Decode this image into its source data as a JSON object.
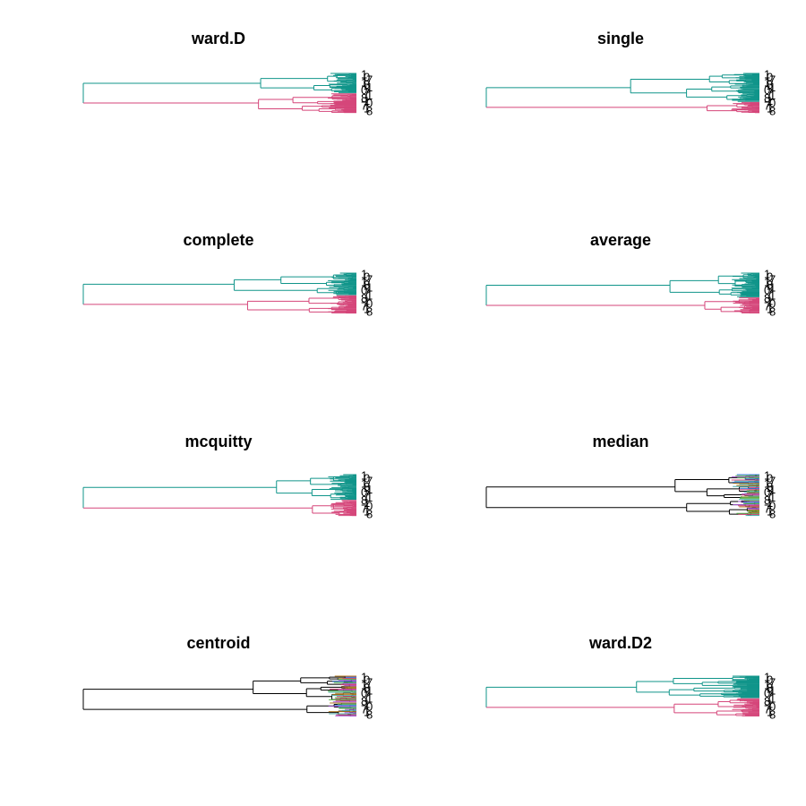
{
  "chart_data": [
    {
      "type": "dendrogram",
      "title": "ward.D",
      "orientation": "horizontal",
      "colors": [
        "#10958A",
        "#D5467A"
      ],
      "group_sizes": [
        0.5,
        0.5
      ],
      "leaf_labels_shown": true
    },
    {
      "type": "dendrogram",
      "title": "single",
      "orientation": "horizontal",
      "colors": [
        "#10958A",
        "#D5467A"
      ],
      "group_sizes": [
        0.72,
        0.28
      ],
      "leaf_labels_shown": true
    },
    {
      "type": "dendrogram",
      "title": "complete",
      "orientation": "horizontal",
      "colors": [
        "#10958A",
        "#D5467A"
      ],
      "group_sizes": [
        0.55,
        0.45
      ],
      "leaf_labels_shown": true
    },
    {
      "type": "dendrogram",
      "title": "average",
      "orientation": "horizontal",
      "colors": [
        "#10958A",
        "#D5467A"
      ],
      "group_sizes": [
        0.6,
        0.4
      ],
      "leaf_labels_shown": true
    },
    {
      "type": "dendrogram",
      "title": "mcquitty",
      "orientation": "horizontal",
      "colors": [
        "#10958A",
        "#D5467A"
      ],
      "group_sizes": [
        0.62,
        0.38
      ],
      "leaf_labels_shown": true
    },
    {
      "type": "dendrogram",
      "title": "median",
      "orientation": "horizontal",
      "colors": [
        "#000000",
        "#D5467A",
        "#5AB64A",
        "#3A7FE0",
        "#A45AD2",
        "#4FB0B0",
        "#B07820"
      ],
      "group_sizes": [
        0.6,
        0.4
      ],
      "leaf_labels_shown": true
    },
    {
      "type": "dendrogram",
      "title": "centroid",
      "orientation": "horizontal",
      "colors": [
        "#000000",
        "#D5467A",
        "#5AB64A",
        "#3A7FE0",
        "#A45AD2",
        "#4FB0B0",
        "#B07820"
      ],
      "group_sizes": [
        0.65,
        0.35
      ],
      "leaf_labels_shown": true
    },
    {
      "type": "dendrogram",
      "title": "ward.D2",
      "orientation": "horizontal",
      "colors": [
        "#10958A",
        "#D5467A"
      ],
      "group_sizes": [
        0.55,
        0.45
      ],
      "leaf_labels_shown": true
    }
  ]
}
